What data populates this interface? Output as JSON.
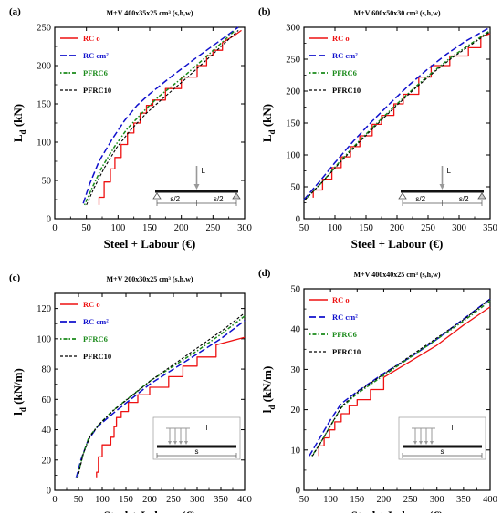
{
  "colors": {
    "rc_o": "#ee1111",
    "rc_cm2": "#1010cc",
    "pfrc6": "#1a8a1a",
    "pfrc10": "#000000",
    "inset_line": "#999999"
  },
  "chart_data": [
    {
      "type": "line",
      "tag": "(a)",
      "title": "M+V 400x35x25 cm³ (s,h,w)",
      "xlabel": "Steel + Labour (€)",
      "ylabel_main": "L",
      "ylabel_sub": "d",
      "ylabel_unit": " (kN)",
      "xlim": [
        0,
        300
      ],
      "ylim": [
        0,
        250
      ],
      "xticks": [
        "0",
        "50",
        "100",
        "150",
        "200",
        "250",
        "300"
      ],
      "yticks": [
        "0",
        "50",
        "100",
        "150",
        "200",
        "250"
      ],
      "inset": {
        "type": "point",
        "load": "L",
        "left": "s/2",
        "right": "s/2"
      },
      "series": [
        {
          "name": "RC o",
          "key": "rc_o",
          "x": [
            70,
            70,
            78,
            78,
            88,
            88,
            95,
            95,
            105,
            105,
            115,
            115,
            125,
            125,
            135,
            135,
            145,
            145,
            155,
            155,
            175,
            175,
            200,
            200,
            225,
            225,
            240,
            240,
            250,
            250,
            265,
            265,
            285,
            295
          ],
          "y": [
            18,
            28,
            28,
            48,
            48,
            65,
            65,
            80,
            80,
            97,
            97,
            112,
            112,
            125,
            125,
            138,
            138,
            148,
            148,
            155,
            155,
            170,
            170,
            185,
            185,
            200,
            200,
            213,
            213,
            220,
            220,
            230,
            240,
            246
          ]
        },
        {
          "name": "RC cm²",
          "key": "rc_cm2",
          "x": [
            45,
            55,
            70,
            90,
            110,
            130,
            150,
            180,
            220,
            260,
            290
          ],
          "y": [
            20,
            45,
            75,
            103,
            128,
            148,
            163,
            183,
            208,
            232,
            250
          ]
        },
        {
          "name": "PFRC6",
          "key": "pfrc6",
          "x": [
            47,
            60,
            75,
            95,
            115,
            140,
            165,
            200,
            240,
            285
          ],
          "y": [
            18,
            42,
            68,
            95,
            118,
            140,
            160,
            183,
            212,
            246
          ]
        },
        {
          "name": "PFRC10",
          "key": "pfrc10",
          "x": [
            50,
            62,
            78,
            98,
            120,
            145,
            172,
            210,
            250,
            290
          ],
          "y": [
            18,
            40,
            66,
            93,
            116,
            138,
            158,
            185,
            215,
            246
          ]
        }
      ]
    },
    {
      "type": "line",
      "tag": "(b)",
      "title": "M+V 600x50x30 cm³ (s,h,w)",
      "xlabel": "Steel + Labour (€)",
      "ylabel_main": "L",
      "ylabel_sub": "d",
      "ylabel_unit": " (kN)",
      "xlim": [
        50,
        350
      ],
      "ylim": [
        0,
        300
      ],
      "xticks": [
        "50",
        "100",
        "150",
        "200",
        "250",
        "300",
        "350"
      ],
      "yticks": [
        "0",
        "50",
        "100",
        "150",
        "200",
        "250",
        "300"
      ],
      "inset": {
        "type": "point",
        "load": "L",
        "left": "s/2",
        "right": "s/2"
      },
      "series": [
        {
          "name": "RC o",
          "key": "rc_o",
          "x": [
            65,
            65,
            80,
            80,
            95,
            95,
            110,
            110,
            125,
            125,
            140,
            140,
            160,
            160,
            175,
            175,
            195,
            195,
            210,
            210,
            235,
            235,
            255,
            255,
            285,
            285,
            315,
            315,
            335,
            335,
            350
          ],
          "y": [
            33,
            45,
            45,
            62,
            62,
            80,
            80,
            97,
            97,
            113,
            113,
            130,
            130,
            148,
            148,
            162,
            162,
            180,
            180,
            195,
            195,
            222,
            222,
            240,
            240,
            255,
            255,
            268,
            268,
            285,
            290
          ]
        },
        {
          "name": "RC cm²",
          "key": "rc_cm2",
          "x": [
            50,
            75,
            100,
            130,
            160,
            190,
            220,
            250,
            280,
            310,
            350
          ],
          "y": [
            30,
            58,
            88,
            122,
            153,
            182,
            210,
            235,
            258,
            278,
            300
          ]
        },
        {
          "name": "PFRC6",
          "key": "pfrc6",
          "x": [
            52,
            80,
            110,
            140,
            170,
            200,
            230,
            260,
            290,
            320,
            350
          ],
          "y": [
            30,
            58,
            92,
            123,
            152,
            180,
            207,
            232,
            255,
            275,
            295
          ]
        },
        {
          "name": "PFRC10",
          "key": "pfrc10",
          "x": [
            52,
            80,
            110,
            140,
            170,
            200,
            230,
            260,
            290,
            320,
            350
          ],
          "y": [
            30,
            58,
            90,
            121,
            150,
            178,
            205,
            230,
            253,
            273,
            293
          ]
        }
      ]
    },
    {
      "type": "line",
      "tag": "(c)",
      "title": "M+V 200x30x25 cm³ (s,h,w)",
      "xlabel": "Steel + Labour (€)",
      "ylabel_main": "l",
      "ylabel_sub": "d",
      "ylabel_unit": " (kN/m)",
      "xlim": [
        0,
        400
      ],
      "ylim": [
        0,
        130
      ],
      "xticks": [
        "0",
        "50",
        "100",
        "150",
        "200",
        "250",
        "300",
        "350",
        "400"
      ],
      "yticks": [
        "0",
        "20",
        "40",
        "60",
        "80",
        "100",
        "120"
      ],
      "inset": {
        "type": "distributed",
        "load": "l",
        "span": "s"
      },
      "series": [
        {
          "name": "RC o",
          "key": "rc_o",
          "x": [
            88,
            88,
            92,
            92,
            100,
            100,
            118,
            118,
            125,
            125,
            130,
            130,
            140,
            140,
            155,
            155,
            175,
            175,
            200,
            200,
            240,
            240,
            270,
            270,
            300,
            300,
            340,
            340,
            400
          ],
          "y": [
            8,
            12,
            12,
            22,
            22,
            30,
            30,
            35,
            35,
            42,
            42,
            48,
            48,
            52,
            52,
            58,
            58,
            63,
            63,
            68,
            68,
            75,
            75,
            82,
            82,
            88,
            88,
            96,
            101
          ]
        },
        {
          "name": "RC cm²",
          "key": "rc_cm2",
          "x": [
            45,
            55,
            70,
            90,
            120,
            160,
            200,
            250,
            300,
            350,
            400
          ],
          "y": [
            8,
            20,
            33,
            42,
            50,
            60,
            70,
            80,
            90,
            100,
            112
          ]
        },
        {
          "name": "PFRC6",
          "key": "pfrc6",
          "x": [
            47,
            58,
            72,
            92,
            120,
            160,
            200,
            250,
            300,
            350,
            400
          ],
          "y": [
            8,
            22,
            35,
            43,
            52,
            62,
            72,
            82,
            92,
            103,
            115
          ]
        },
        {
          "name": "PFRC10",
          "key": "pfrc10",
          "x": [
            48,
            60,
            75,
            95,
            125,
            165,
            205,
            255,
            305,
            355,
            400
          ],
          "y": [
            8,
            24,
            36,
            44,
            53,
            63,
            73,
            84,
            95,
            106,
            117
          ]
        }
      ]
    },
    {
      "type": "line",
      "tag": "(d)",
      "title": "M+V 400x40x25 cm³ (s,h,w)",
      "xlabel": "Steel + Labour (€)",
      "ylabel_main": "l",
      "ylabel_sub": "d",
      "ylabel_unit": " (kN/m)",
      "xlim": [
        50,
        400
      ],
      "ylim": [
        0,
        50
      ],
      "xticks": [
        "50",
        "100",
        "150",
        "200",
        "250",
        "300",
        "350",
        "400"
      ],
      "yticks": [
        "0",
        "10",
        "20",
        "30",
        "40",
        "50"
      ],
      "inset": {
        "type": "distributed",
        "load": "l",
        "span": "s"
      },
      "series": [
        {
          "name": "RC o",
          "key": "rc_o",
          "x": [
            78,
            78,
            88,
            88,
            98,
            98,
            108,
            108,
            120,
            120,
            135,
            135,
            150,
            150,
            175,
            175,
            200,
            200,
            250,
            300,
            350,
            400
          ],
          "y": [
            8.5,
            11,
            11,
            13,
            13,
            15,
            15,
            17,
            17,
            19,
            19,
            21,
            21,
            22.5,
            22.5,
            25,
            25,
            28,
            32,
            36,
            41,
            45.5
          ]
        },
        {
          "name": "RC cm²",
          "key": "rc_cm2",
          "x": [
            60,
            80,
            100,
            120,
            150,
            200,
            250,
            300,
            350,
            400
          ],
          "y": [
            8.5,
            13,
            17.5,
            21.5,
            24.5,
            29,
            33,
            37.5,
            42.5,
            47.5
          ]
        },
        {
          "name": "PFRC6",
          "key": "pfrc6",
          "x": [
            65,
            80,
            100,
            120,
            150,
            200,
            250,
            300,
            350,
            400
          ],
          "y": [
            8.5,
            11.5,
            16,
            20.5,
            24,
            28.5,
            33,
            37.5,
            42,
            47
          ]
        },
        {
          "name": "PFRC10",
          "key": "pfrc10",
          "x": [
            66,
            82,
            102,
            122,
            152,
            202,
            252,
            302,
            352,
            400
          ],
          "y": [
            8.5,
            12,
            16.5,
            21,
            24.5,
            29,
            33.5,
            38,
            42.5,
            47.5
          ]
        }
      ]
    }
  ]
}
